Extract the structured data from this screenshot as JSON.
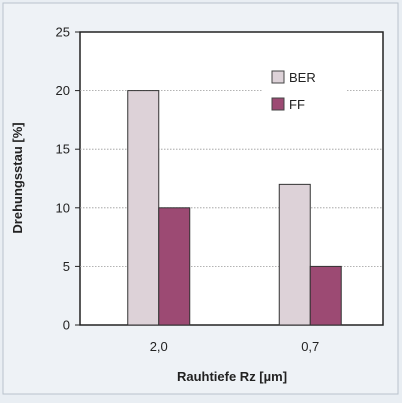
{
  "chart_data": {
    "type": "bar",
    "categories": [
      "2,0",
      "0,7"
    ],
    "series": [
      {
        "name": "BER",
        "values": [
          20,
          12
        ],
        "color": "#ddd2d8"
      },
      {
        "name": "FF",
        "values": [
          10,
          5
        ],
        "color": "#9c4a73"
      }
    ],
    "xlabel": "Rauhtiefe Rz [µm]",
    "ylabel": "Drehungsstau [%]",
    "ylim": [
      0,
      25
    ],
    "yticks": [
      0,
      5,
      10,
      15,
      20,
      25
    ],
    "grid": true,
    "legend": "top-right",
    "colors": {
      "plot_background": "#ffffff",
      "page_background": "#e9eef3",
      "axis": "#222222",
      "grid": "#9a9a9a"
    }
  }
}
